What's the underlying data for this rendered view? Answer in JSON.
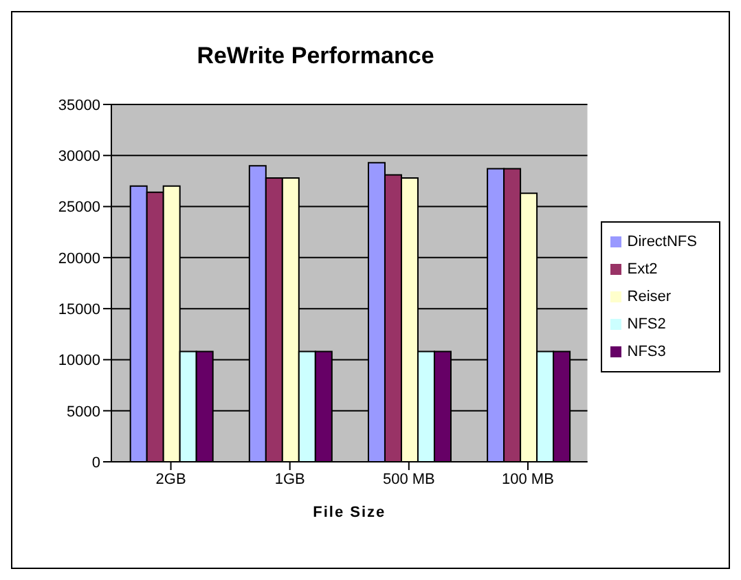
{
  "chart_data": {
    "type": "bar",
    "title": "ReWrite Performance",
    "xlabel": "File Size",
    "categories": [
      "2GB",
      "1GB",
      "500 MB",
      "100 MB"
    ],
    "series": [
      {
        "name": "DirectNFS",
        "color": "#9999ff",
        "values": [
          27000,
          29000,
          29300,
          28700
        ]
      },
      {
        "name": "Ext2",
        "color": "#993366",
        "values": [
          26400,
          27800,
          28100,
          28700
        ]
      },
      {
        "name": "Reiser",
        "color": "#ffffcc",
        "values": [
          27000,
          27800,
          27800,
          26300
        ]
      },
      {
        "name": "NFS2",
        "color": "#ccffff",
        "values": [
          10800,
          10800,
          10800,
          10800
        ]
      },
      {
        "name": "NFS3",
        "color": "#660066",
        "values": [
          10800,
          10800,
          10800,
          10800
        ]
      }
    ],
    "ylim": [
      0,
      35000
    ],
    "yticks": [
      0,
      5000,
      10000,
      15000,
      20000,
      25000,
      30000,
      35000
    ],
    "grid": "y",
    "legend": "right"
  }
}
